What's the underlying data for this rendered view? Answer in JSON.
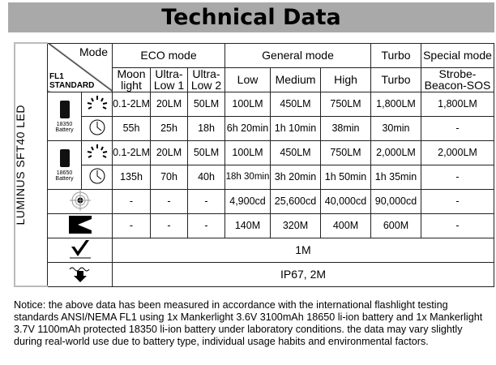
{
  "title": "Technical Data",
  "led": "LUMINUS SFT40 LED",
  "header": {
    "mode": "Mode",
    "standard_l1": "FL1",
    "standard_l2": "STANDARD",
    "eco": "ECO mode",
    "general": "General mode",
    "turbo": "Turbo",
    "special": "Special mode",
    "sub": [
      "Moon light",
      "Ultra-Low 1",
      "Ultra-Low 2",
      "Low",
      "Medium",
      "High",
      "Turbo",
      "Strobe-Beacon-SOS"
    ]
  },
  "batteries": [
    {
      "model": "18350",
      "label": "Battery"
    },
    {
      "model": "18650",
      "label": "Battery"
    }
  ],
  "rows": {
    "b1_lumens": [
      "0.1-2LM",
      "20LM",
      "50LM",
      "100LM",
      "450LM",
      "750LM",
      "1,800LM",
      "1,800LM"
    ],
    "b1_runtime": [
      "55h",
      "25h",
      "18h",
      "6h 20min",
      "1h 10min",
      "38min",
      "30min",
      "-"
    ],
    "b2_lumens": [
      "0.1-2LM",
      "20LM",
      "50LM",
      "100LM",
      "450LM",
      "750LM",
      "2,000LM",
      "2,000LM"
    ],
    "b2_runtime": [
      "135h",
      "70h",
      "40h",
      "18h 30min",
      "3h 20min",
      "1h 50min",
      "1h 35min",
      "-"
    ],
    "intensity": [
      "-",
      "-",
      "-",
      "4,900cd",
      "25,600cd",
      "40,000cd",
      "90,000cd",
      "-"
    ],
    "distance": [
      "-",
      "-",
      "-",
      "140M",
      "320M",
      "400M",
      "600M",
      "-"
    ],
    "impact": "1M",
    "waterproof": "IP67, 2M"
  },
  "notice": "Notice: the above data has been measured in accordance with the international flashlight testing standards ANSI/NEMA FL1 using 1x Mankerlight 3.6V 3100mAh 18650 li-ion battery and 1x Mankerlight 3.7V 1100mAh protected 18350 li-ion battery under laboratory conditions. the data may vary slightly during real-world use due to battery type, individual usage habits and environmental factors."
}
